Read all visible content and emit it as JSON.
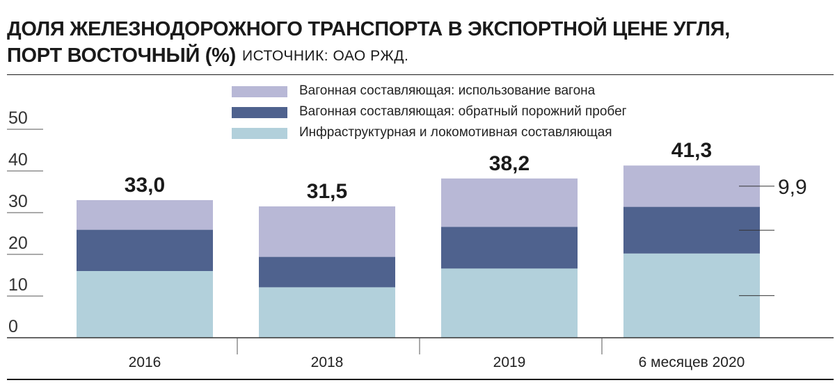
{
  "header": {
    "title_line1": "ДОЛЯ ЖЕЛЕЗНОДОРОЖНОГО ТРАНСПОРТА В ЭКСПОРТНОЙ ЦЕНЕ УГЛЯ,",
    "title_line2": "ПОРТ ВОСТОЧНЫЙ (%)",
    "source": "ИСТОЧНИК: ОАО РЖД."
  },
  "colors": {
    "usage": "#b8b8d6",
    "empty_run": "#4f628e",
    "infrastructure": "#b2d0db",
    "axis": "#333333"
  },
  "legend": [
    {
      "label": "Вагонная составляющая: использование вагона",
      "color": "#b8b8d6"
    },
    {
      "label": "Вагонная составляющая: обратный порожний пробег",
      "color": "#4f628e"
    },
    {
      "label": "Инфраструктурная и локомотивная составляющая",
      "color": "#b2d0db"
    }
  ],
  "chart_data": {
    "type": "bar",
    "stacked": true,
    "categories": [
      "2016",
      "2018",
      "2019",
      "6 месяцев 2020"
    ],
    "series": [
      {
        "name": "Инфраструктурная и локомотивная составляющая",
        "values": [
          16.0,
          12.1,
          16.6,
          20.2
        ]
      },
      {
        "name": "Вагонная составляющая: обратный порожний пробег",
        "values": [
          9.9,
          7.3,
          10.0,
          11.2
        ]
      },
      {
        "name": "Вагонная составляющая: использование вагона",
        "values": [
          7.1,
          12.1,
          11.6,
          9.9
        ]
      }
    ],
    "totals": [
      "33,0",
      "31,5",
      "38,2",
      "41,3"
    ],
    "annotation": {
      "category": "6 месяцев 2020",
      "text": "9,9"
    },
    "yticks": [
      0,
      10,
      20,
      30,
      40,
      50
    ],
    "ylim": [
      0,
      50
    ],
    "grid": false,
    "legend_position": "top-center"
  }
}
